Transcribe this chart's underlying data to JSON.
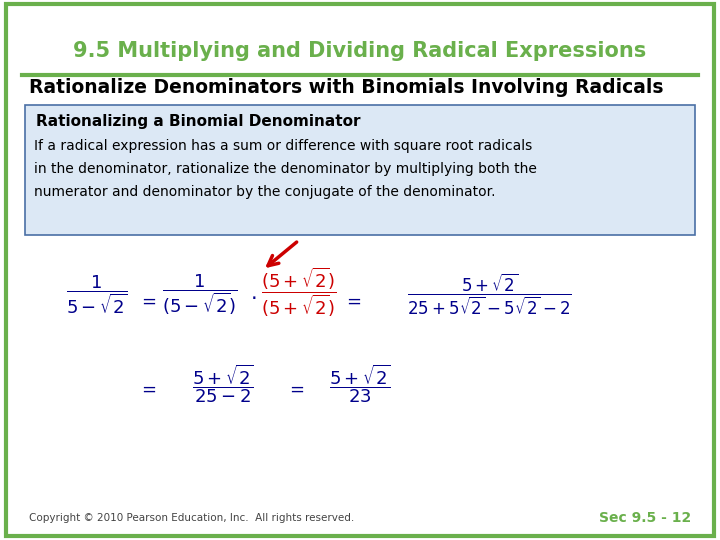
{
  "title": "9.5 Multiplying and Dividing Radical Expressions",
  "subtitle": "Rationalize Denominators with Binomials Involving Radicals",
  "title_color": "#6ab04c",
  "subtitle_color": "#000000",
  "border_color": "#6ab04c",
  "bg_color": "#ffffff",
  "box_title": "Rationalizing a Binomial Denominator",
  "box_text_line1": "If a radical expression has a sum or difference with square root radicals",
  "box_text_line2": "in the denominator, rationalize the denominator by multiplying both the",
  "box_text_line3": "numerator and denominator by the conjugate of the denominator.",
  "box_bg": "#dce8f5",
  "box_border": "#4a6fa5",
  "copyright": "Copyright © 2010 Pearson Education, Inc.  All rights reserved.",
  "sec_label": "Sec 9.5 - 12",
  "sec_color": "#6ab04c",
  "math_color": "#00008B",
  "red_color": "#cc0000"
}
